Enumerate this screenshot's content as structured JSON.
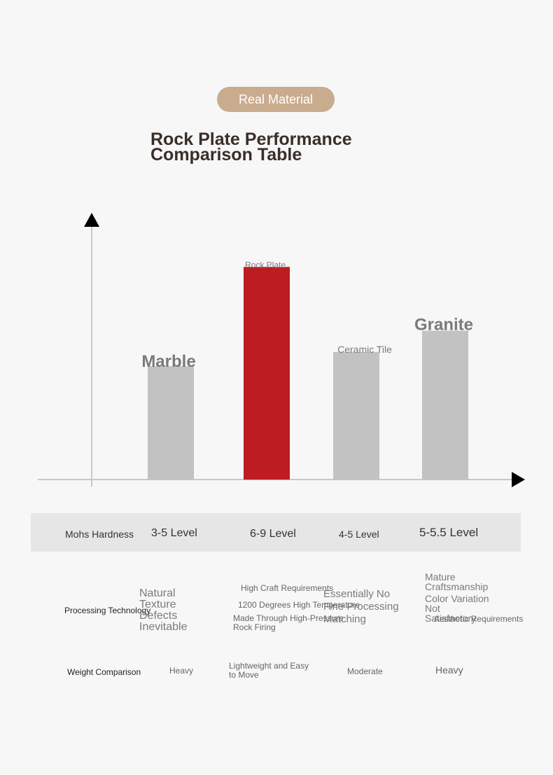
{
  "badge": {
    "label": "Real Material"
  },
  "title": {
    "line1": "Rock Plate Performance",
    "line2": "Comparison Table"
  },
  "chart_data": {
    "type": "bar",
    "categories": [
      "Marble",
      "Rock Plate",
      "Ceramic Tile",
      "Granite"
    ],
    "values": [
      4,
      7.5,
      4.5,
      5.25
    ],
    "ylim": [
      0,
      10
    ],
    "highlight_index": 1,
    "colors": {
      "bar": "#c2c2c2",
      "highlight": "#be1c23",
      "axis": "#c8c8c8",
      "label": "#7a7a7a"
    }
  },
  "table": {
    "hardness": {
      "label": "Mohs Hardness",
      "values": [
        "3-5 Level",
        "6-9 Level",
        "4-5 Level",
        "5-5.5 Level"
      ]
    },
    "processing": {
      "label": "Processing Technology",
      "marble": [
        "Natural",
        "Texture",
        "Defects",
        "Inevitable"
      ],
      "rock_plate": [
        "High Craft Requirements",
        "1200 Degrees High Temperature",
        "Made Through High-Pressure",
        "Rock Firing"
      ],
      "ceramic": [
        "Essentially No",
        "Fine Processing",
        "Matching"
      ],
      "granite": [
        "Mature",
        "Craftsmanship",
        "Color Variation",
        "Not",
        "Satisfactory",
        "Aesthetic Requirements"
      ]
    },
    "weight": {
      "label": "Weight Comparison",
      "values": [
        "Heavy",
        "Lightweight and Easy",
        "to Move",
        "Moderate",
        "Heavy"
      ]
    }
  }
}
